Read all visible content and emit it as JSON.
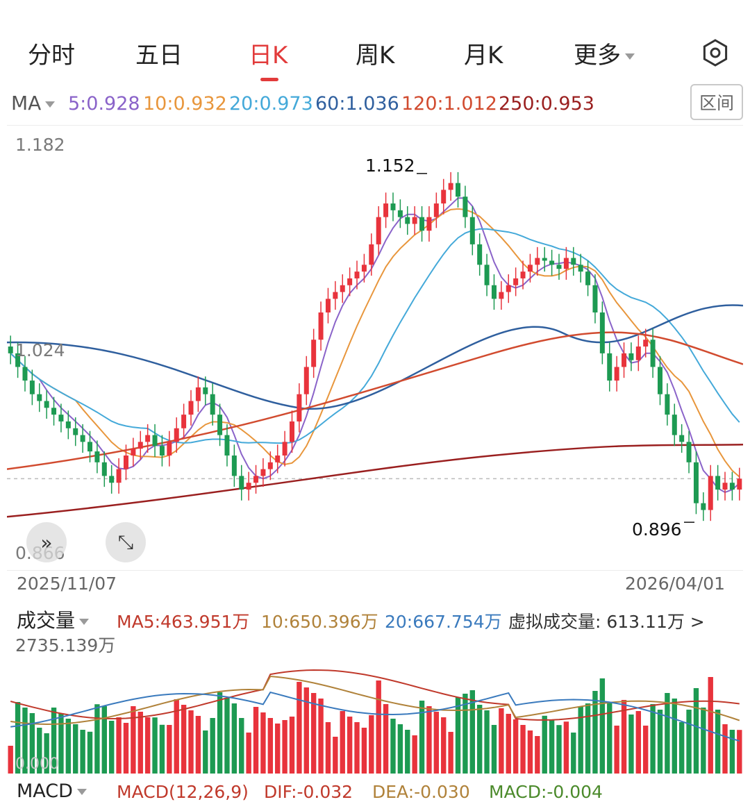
{
  "tabs": [
    {
      "label": "分时",
      "active": false
    },
    {
      "label": "五日",
      "active": false
    },
    {
      "label": "日K",
      "active": true
    },
    {
      "label": "周K",
      "active": false
    },
    {
      "label": "月K",
      "active": false
    },
    {
      "label": "更多",
      "active": false
    }
  ],
  "settings_icon": "gear-icon",
  "ma_bar": {
    "label": "MA",
    "values": [
      {
        "text": "5:0.928",
        "color": "#8a63c9"
      },
      {
        "text": "10:0.932",
        "color": "#e8963c"
      },
      {
        "text": "20:0.973",
        "color": "#44a9d9"
      },
      {
        "text": "60:1.036",
        "color": "#2f5f9e"
      },
      {
        "text": "120:1.012",
        "color": "#d14b2f"
      },
      {
        "text": "250:0.953",
        "color": "#9a1f1f"
      }
    ],
    "range_button": "区间"
  },
  "price_axis": {
    "top": "1.182",
    "mid": "1.024",
    "bottom": "0.866"
  },
  "annotations": {
    "high": "1.152",
    "low": "0.896"
  },
  "dates": {
    "start": "2025/11/07",
    "end": "2026/04/01"
  },
  "volume_bar": {
    "label": "成交量",
    "ma5": "MA5:463.951万",
    "ma10": "10:650.396万",
    "ma20": "20:667.754万",
    "virtual": "虚拟成交量: 613.11万 >",
    "max": "2735.139万",
    "zero": "0.000"
  },
  "macd_bar": {
    "label": "MACD",
    "params": "MACD(12,26,9)",
    "dif": "DIF:-0.032",
    "dea": "DEA:-0.030",
    "macd": "MACD:-0.004"
  },
  "colors": {
    "up": "#e8333c",
    "down": "#1d9a52",
    "accent": "#e23b3b"
  },
  "chart_data": {
    "type": "candlestick",
    "x_range": [
      "2025/11/07",
      "2026/04/01"
    ],
    "ylim": [
      0.866,
      1.182
    ],
    "closes": [
      1.02,
      1.01,
      1.0,
      0.99,
      0.985,
      0.98,
      0.975,
      0.97,
      0.965,
      0.96,
      0.955,
      0.948,
      0.94,
      0.93,
      0.925,
      0.935,
      0.945,
      0.95,
      0.955,
      0.96,
      0.952,
      0.945,
      0.955,
      0.965,
      0.975,
      0.985,
      0.995,
      0.99,
      0.975,
      0.96,
      0.945,
      0.93,
      0.92,
      0.925,
      0.93,
      0.935,
      0.94,
      0.945,
      0.955,
      0.97,
      0.99,
      1.01,
      1.03,
      1.05,
      1.06,
      1.065,
      1.07,
      1.075,
      1.08,
      1.085,
      1.1,
      1.12,
      1.13,
      1.125,
      1.12,
      1.115,
      1.12,
      1.11,
      1.12,
      1.13,
      1.14,
      1.145,
      1.135,
      1.12,
      1.1,
      1.085,
      1.07,
      1.06,
      1.065,
      1.07,
      1.075,
      1.08,
      1.085,
      1.09,
      1.088,
      1.085,
      1.082,
      1.09,
      1.085,
      1.08,
      1.07,
      1.05,
      1.02,
      1.0,
      1.01,
      1.02,
      1.015,
      1.025,
      1.03,
      1.01,
      0.99,
      0.975,
      0.96,
      0.955,
      0.94,
      0.91,
      0.905,
      0.93,
      0.92,
      0.925,
      0.92,
      0.928
    ],
    "volume_max": 2735.139,
    "volume_unit": "万"
  }
}
